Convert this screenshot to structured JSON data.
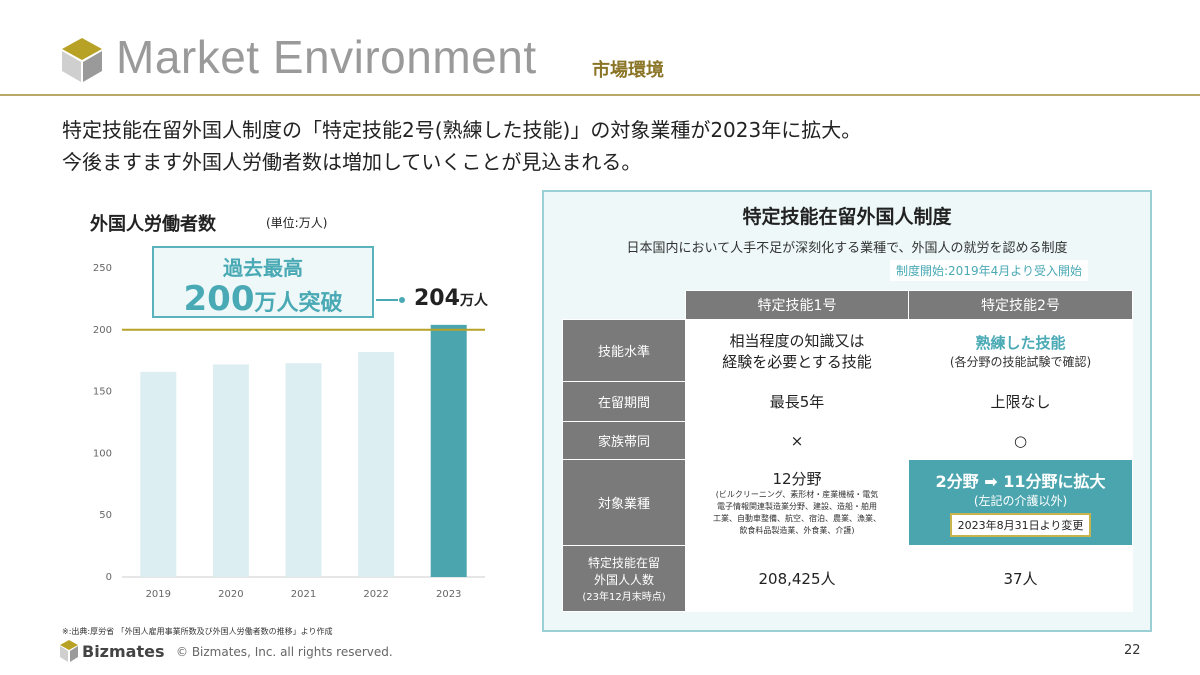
{
  "header": {
    "title": "Market Environment",
    "subtitle": "市場環境",
    "intro_line1": "特定技能在留外国人制度の「特定技能2号(熟練した技能)」の対象業種が2023年に拡大。",
    "intro_line2": "今後ますます外国人労働者数は増加していくことが見込まれる。"
  },
  "chart_data": {
    "type": "bar",
    "title": "外国人労働者数",
    "unit": "(単位:万人)",
    "categories": [
      "2019",
      "2020",
      "2021",
      "2022",
      "2023"
    ],
    "values": [
      166,
      172,
      173,
      182,
      204
    ],
    "ylim": [
      0,
      250
    ],
    "yticks": [
      "0",
      "50",
      "100",
      "150",
      "200",
      "250"
    ],
    "reference_line": 200,
    "highlight_index": 4,
    "value_label": {
      "number": "204",
      "suffix": "万人"
    },
    "callout": {
      "line1": "過去最高",
      "number": "200",
      "suffix": "万人突破"
    },
    "colors": {
      "bar": "#ddeef2",
      "highlight_bar": "#4ba5ae",
      "reference_line": "#b8a226",
      "grid": "#e6e6e6"
    },
    "grid": false,
    "legend": "none"
  },
  "source_note": "※:出典:厚労省 「外国人雇用事業所数及び外国人労働者数の推移」より作成",
  "panel": {
    "title": "特定技能在留外国人制度",
    "description": "日本国内において人手不足が深刻化する業種で、外国人の就労を認める制度",
    "start_badge": "制度開始:2019年4月より受入開始",
    "columns": [
      "特定技能1号",
      "特定技能2号"
    ],
    "rows": {
      "skill": {
        "label": "技能水準",
        "c1_line1": "相当程度の知識又は",
        "c1_line2": "経験を必要とする技能",
        "c2_line1": "熟練した技能",
        "c2_line2": "(各分野の技能試験で確認)"
      },
      "stay": {
        "label": "在留期間",
        "c1": "最長5年",
        "c2": "上限なし"
      },
      "family": {
        "label": "家族帯同",
        "c1": "×",
        "c2": "○"
      },
      "industry": {
        "label": "対象業種",
        "c1_title": "12分野",
        "c1_detail_1": "(ビルクリーニング、素形材・産業機械・電気",
        "c1_detail_2": "電子情報関連製造業分野、建設、造船・舶用",
        "c1_detail_3": "工業、自動車整備、航空、宿泊、農業、漁業、",
        "c1_detail_4": "飲食料品製造業、外食業、介護)",
        "c2_expand": "2分野 ➡ 11分野に拡大",
        "c2_note": "(左記の介護以外)",
        "c2_date": "2023年8月31日より変更"
      },
      "count": {
        "label_line1": "特定技能在留",
        "label_line2": "外国人人数",
        "label_line3": "(23年12月末時点)",
        "c1": "208,425人",
        "c2": "37人"
      }
    }
  },
  "footer": {
    "brand": "Bizmates",
    "copyright": "© Bizmates, Inc. all rights reserved.",
    "page_number": "22"
  }
}
